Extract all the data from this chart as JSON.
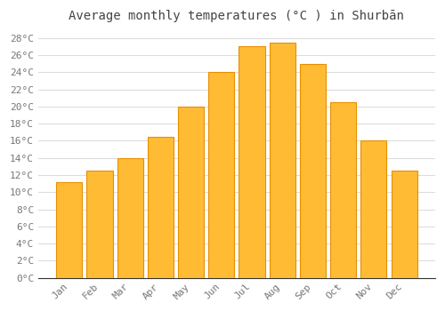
{
  "title": "Average monthly temperatures (°C ) in Shurbān",
  "months": [
    "Jan",
    "Feb",
    "Mar",
    "Apr",
    "May",
    "Jun",
    "Jul",
    "Aug",
    "Sep",
    "Oct",
    "Nov",
    "Dec"
  ],
  "temperatures": [
    11.2,
    12.5,
    14.0,
    16.5,
    20.0,
    24.0,
    27.0,
    27.5,
    25.0,
    20.5,
    16.0,
    12.5
  ],
  "bar_color": "#FFBB33",
  "bar_edge_color": "#E89000",
  "background_color": "#FFFFFF",
  "plot_bg_color": "#FFFFFF",
  "grid_color": "#DDDDDD",
  "ylim": [
    0,
    29
  ],
  "ytick_step": 2,
  "title_fontsize": 10,
  "tick_fontsize": 8,
  "font_color": "#777777",
  "title_color": "#444444"
}
